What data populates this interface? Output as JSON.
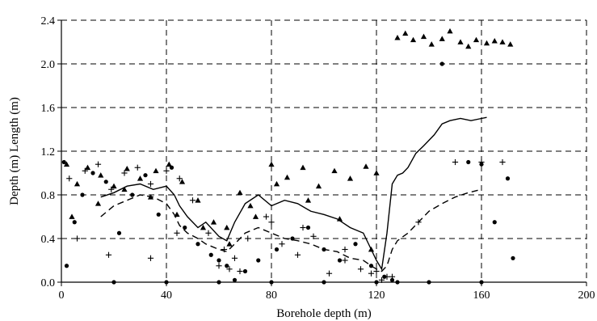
{
  "chart_data": {
    "type": "scatter",
    "xlabel": "Borehole depth (m)",
    "ylabel": "Depth (m) Length (m)",
    "xlim": [
      0,
      200
    ],
    "ylim": [
      0,
      2.4
    ],
    "xticks": [
      0,
      40,
      80,
      120,
      160,
      200
    ],
    "yticks": [
      0.0,
      0.4,
      0.8,
      1.2,
      1.6,
      2.0,
      2.4
    ],
    "grid": "dashed",
    "legend": "none",
    "series": [
      {
        "marker": "triangle",
        "x": [
          2,
          6,
          10,
          15,
          20,
          25,
          30,
          36,
          41,
          46,
          52,
          58,
          63,
          68,
          74,
          80,
          86,
          92,
          98,
          104,
          110,
          116,
          120,
          4,
          14,
          24,
          34,
          44,
          54,
          64,
          72,
          82,
          94,
          106,
          118,
          128,
          131,
          134,
          138,
          141,
          145,
          148,
          152,
          155,
          158,
          162,
          165,
          168,
          171
        ],
        "y": [
          1.08,
          0.9,
          1.05,
          0.98,
          0.88,
          1.04,
          0.95,
          1.02,
          1.08,
          0.92,
          0.75,
          0.55,
          0.5,
          0.82,
          0.6,
          1.08,
          0.96,
          1.05,
          0.88,
          1.02,
          0.95,
          1.06,
          1.0,
          0.6,
          0.72,
          0.85,
          0.78,
          0.62,
          0.5,
          0.35,
          0.7,
          0.9,
          0.75,
          0.58,
          0.3,
          2.24,
          2.28,
          2.22,
          2.25,
          2.18,
          2.23,
          2.3,
          2.2,
          2.16,
          2.22,
          2.19,
          2.21,
          2.2,
          2.18
        ]
      },
      {
        "marker": "cross",
        "x": [
          3,
          9,
          14,
          19,
          24,
          29,
          34,
          40,
          45,
          50,
          56,
          62,
          66,
          71,
          78,
          84,
          90,
          96,
          102,
          108,
          114,
          120,
          124,
          6,
          18,
          34,
          44,
          60,
          64,
          68,
          80,
          92,
          108,
          118,
          122,
          126,
          136,
          150,
          160,
          168
        ],
        "y": [
          0.95,
          1.02,
          1.08,
          0.85,
          1.0,
          1.05,
          0.9,
          1.02,
          0.95,
          0.75,
          0.45,
          0.3,
          0.22,
          0.4,
          0.6,
          0.35,
          0.25,
          0.42,
          0.08,
          0.3,
          0.12,
          0.1,
          0.05,
          0.4,
          0.25,
          0.22,
          0.45,
          0.15,
          0.12,
          0.1,
          0.55,
          0.5,
          0.2,
          0.08,
          0.02,
          0.05,
          0.55,
          1.1,
          1.1,
          1.1
        ]
      },
      {
        "marker": "dot",
        "x": [
          1,
          5,
          8,
          12,
          17,
          22,
          27,
          32,
          37,
          42,
          47,
          52,
          57,
          60,
          63,
          66,
          70,
          75,
          82,
          88,
          94,
          100,
          106,
          112,
          118,
          123,
          126,
          128,
          145,
          155,
          160,
          165,
          170,
          172,
          2,
          20,
          40,
          60,
          80,
          100,
          120,
          140,
          160
        ],
        "y": [
          1.1,
          0.55,
          0.8,
          1.0,
          0.92,
          0.45,
          0.8,
          0.98,
          0.62,
          1.05,
          0.5,
          0.35,
          0.25,
          0.2,
          0.15,
          0.02,
          0.1,
          0.2,
          0.3,
          0.4,
          0.5,
          0.3,
          0.2,
          0.35,
          0.15,
          0.05,
          0.02,
          0.0,
          2.0,
          1.1,
          1.08,
          0.55,
          0.95,
          0.22,
          0.15,
          0.0,
          0.0,
          0.0,
          0.0,
          0.0,
          0.0,
          0.0,
          0.0
        ]
      },
      {
        "marker": "line-solid",
        "x": [
          15,
          20,
          25,
          30,
          35,
          40,
          43,
          45,
          48,
          52,
          55,
          60,
          63,
          66,
          70,
          75,
          80,
          85,
          90,
          95,
          100,
          105,
          110,
          115,
          118,
          120,
          122,
          124,
          126,
          128,
          130,
          132,
          135,
          138,
          142,
          145,
          148,
          152,
          156,
          160,
          162
        ],
        "y": [
          0.78,
          0.82,
          0.88,
          0.9,
          0.85,
          0.88,
          0.8,
          0.7,
          0.6,
          0.5,
          0.55,
          0.42,
          0.38,
          0.55,
          0.72,
          0.8,
          0.7,
          0.75,
          0.72,
          0.65,
          0.62,
          0.58,
          0.5,
          0.45,
          0.3,
          0.2,
          0.12,
          0.45,
          0.9,
          0.98,
          1.0,
          1.05,
          1.18,
          1.25,
          1.35,
          1.45,
          1.48,
          1.5,
          1.48,
          1.5,
          1.51
        ]
      },
      {
        "marker": "line-dashed",
        "x": [
          15,
          20,
          25,
          30,
          35,
          40,
          43,
          45,
          48,
          52,
          55,
          60,
          63,
          66,
          70,
          75,
          80,
          85,
          90,
          95,
          100,
          105,
          110,
          115,
          118,
          120,
          122,
          124,
          126,
          128,
          132,
          136,
          140,
          145,
          150,
          155,
          160
        ],
        "y": [
          0.6,
          0.7,
          0.75,
          0.8,
          0.78,
          0.72,
          0.62,
          0.52,
          0.45,
          0.4,
          0.35,
          0.3,
          0.28,
          0.35,
          0.45,
          0.5,
          0.45,
          0.4,
          0.38,
          0.35,
          0.3,
          0.28,
          0.22,
          0.2,
          0.15,
          0.12,
          0.1,
          0.15,
          0.3,
          0.38,
          0.45,
          0.55,
          0.65,
          0.72,
          0.78,
          0.82,
          0.85
        ]
      }
    ]
  }
}
